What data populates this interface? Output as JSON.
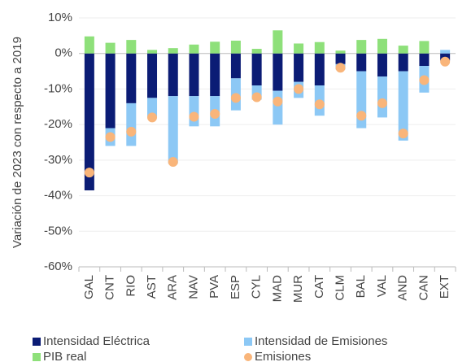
{
  "chart_data": {
    "type": "stacked_bar_dot",
    "y_label": "Variación de 2023 con respecto a 2019",
    "categories": [
      "GAL",
      "CNT",
      "RIO",
      "AST",
      "ARA",
      "NAV",
      "PVA",
      "ESP",
      "CYL",
      "MAD",
      "MUR",
      "CAT",
      "CLM",
      "BAL",
      "VAL",
      "AND",
      "CAN",
      "EXT"
    ],
    "series": [
      {
        "name": "Intensidad Eléctrica",
        "color": "#0b1c75",
        "kind": "bar",
        "values": [
          -38.5,
          -21,
          -14,
          -12.5,
          -12,
          -12,
          -12,
          -7,
          -9,
          -10.5,
          -8,
          -9,
          -3,
          -5,
          -6.5,
          -5,
          -3.5,
          -2
        ]
      },
      {
        "name": "Intensidad de Emisiones",
        "color": "#8cc8f5",
        "kind": "bar",
        "values": [
          0,
          -5,
          -12,
          -5.5,
          -19,
          -8.5,
          -8.5,
          -9,
          -4,
          -9.5,
          -4.5,
          -8.5,
          -1.5,
          -16,
          -11.5,
          -19.5,
          -7.5,
          1
        ]
      },
      {
        "name": "PIB real",
        "color": "#8ee07a",
        "kind": "bar",
        "values": [
          4.8,
          3,
          3.8,
          1,
          1.5,
          2.5,
          3.3,
          3.6,
          1.3,
          6.5,
          2.8,
          3.2,
          0.8,
          3.8,
          4.1,
          2.2,
          3.5,
          0
        ]
      },
      {
        "name": "Emisiones",
        "color": "#f9b57a",
        "kind": "dot",
        "values": [
          -33.5,
          -23.5,
          -22,
          -18,
          -30.5,
          -17.8,
          -17,
          -12.5,
          -12.3,
          -13.5,
          -10,
          -14.3,
          -4,
          -17.5,
          -14,
          -22.5,
          -7.5,
          -2.3
        ]
      }
    ],
    "ylim": [
      -60,
      10
    ],
    "yticks": [
      {
        "value": 10,
        "label": "10%"
      },
      {
        "value": 0,
        "label": "0%"
      },
      {
        "value": -10,
        "label": "-10%"
      },
      {
        "value": -20,
        "label": "-20%"
      },
      {
        "value": -30,
        "label": "-30%"
      },
      {
        "value": -40,
        "label": "-40%"
      },
      {
        "value": -50,
        "label": "-50%"
      },
      {
        "value": -60,
        "label": "-60%"
      }
    ],
    "grid": true
  }
}
